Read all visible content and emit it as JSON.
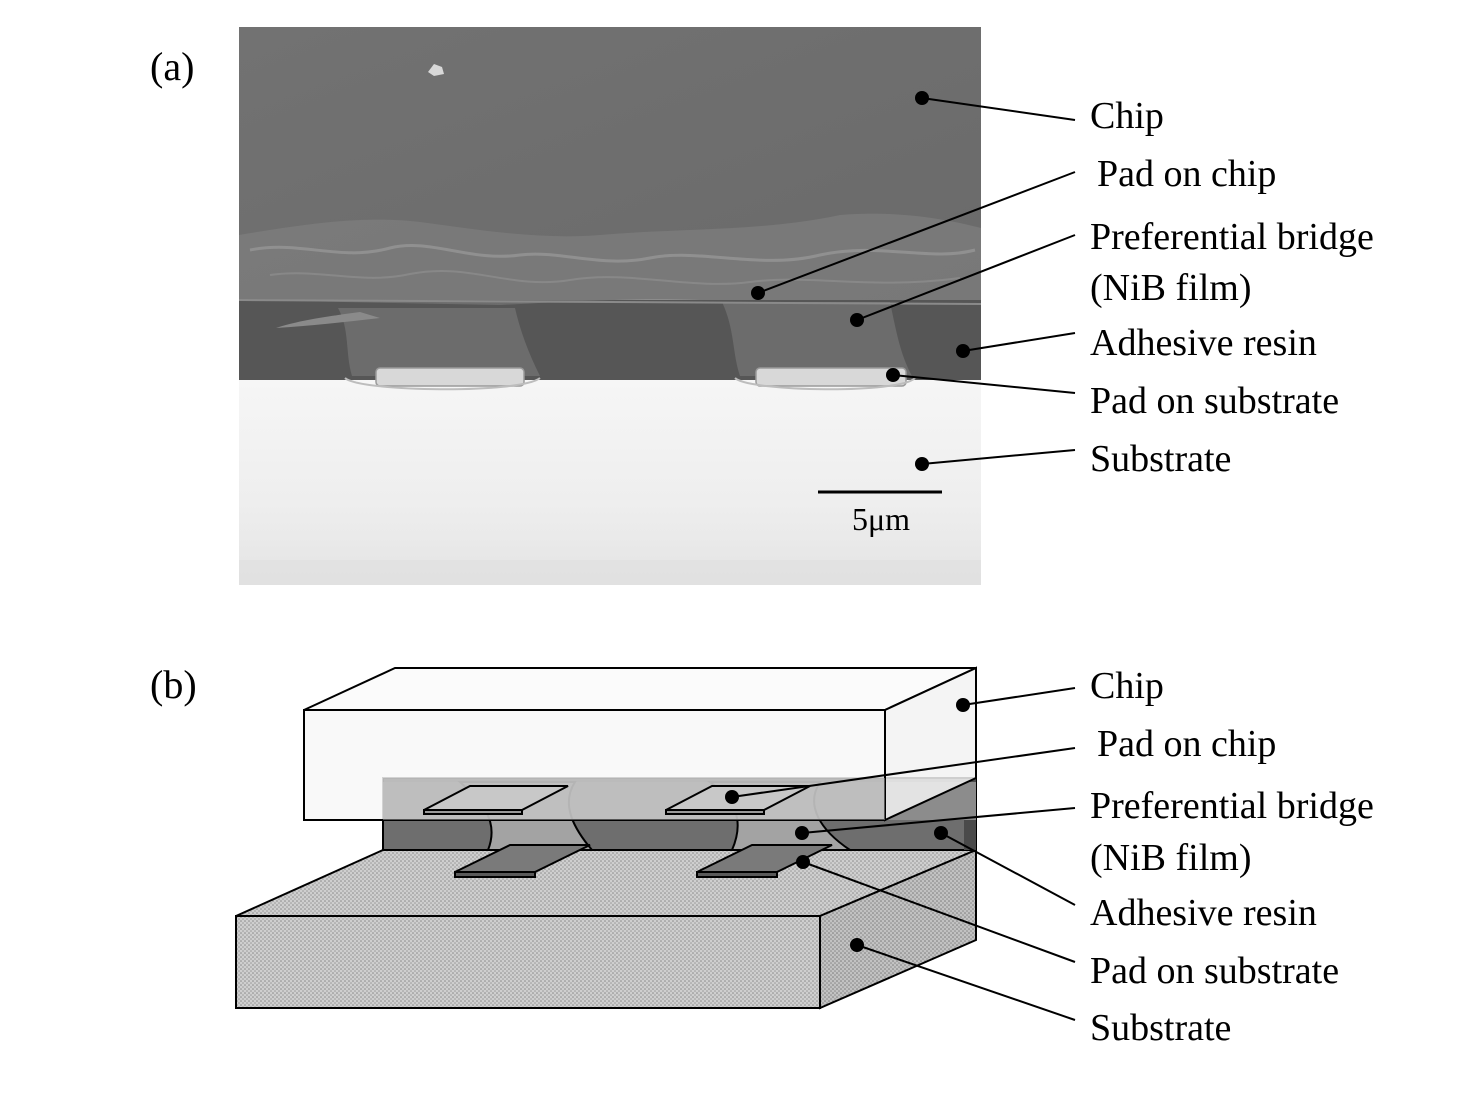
{
  "panel_a": {
    "tag": "(a)",
    "scale_bar": "5μm",
    "labels": {
      "chip": "Chip",
      "pad_on_chip": "Pad on chip",
      "bridge_line1": "Preferential bridge",
      "bridge_line2": "(NiB film)",
      "adhesive": "Adhesive resin",
      "pad_on_substrate": "Pad on substrate",
      "substrate": "Substrate"
    }
  },
  "panel_b": {
    "tag": "(b)",
    "labels": {
      "chip": "Chip",
      "pad_on_chip": "Pad on chip",
      "bridge_line1": "Preferential bridge",
      "bridge_line2": "(NiB film)",
      "adhesive": "Adhesive resin",
      "pad_on_substrate": "Pad on substrate",
      "substrate": "Substrate"
    }
  },
  "colors": {
    "chip_sem": "#6f6f6f",
    "resin_sem": "#555555",
    "substrate_sem": "#ececec",
    "chip_schematic": "#f7f7f7",
    "resin_schematic": "#6e6e6e",
    "bridge_schematic": "#a0a0a0",
    "substrate_schematic": "#c6c6c6"
  }
}
